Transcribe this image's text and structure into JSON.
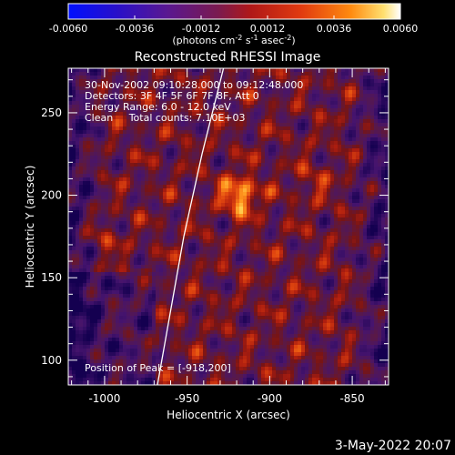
{
  "chart_data": {
    "type": "heatmap",
    "title": "Reconstructed RHESSI Image",
    "xlabel": "Heliocentric X (arcsec)",
    "ylabel": "Heliocentric Y (arcsec)",
    "xlim": [
      -1022,
      -828
    ],
    "ylim": [
      85,
      277
    ],
    "x_ticks": [
      -1000,
      -950,
      -900,
      -850
    ],
    "y_ticks": [
      100,
      150,
      200,
      250
    ],
    "colorbar": {
      "range": [
        -0.006,
        0.006
      ],
      "ticks": [
        "-0.0060",
        "-0.0036",
        "-0.0012",
        "0.0012",
        "0.0036",
        "0.0060"
      ],
      "units_label": "(photons cm",
      "units_exp1": "-2",
      "units_mid1": " s",
      "units_exp2": "-1",
      "units_mid2": " asec",
      "units_exp3": "-2",
      "units_end": ")",
      "colormap": "fire"
    },
    "peak": {
      "x": -918,
      "y": 200
    },
    "limb_curve": [
      [
        -968,
        85
      ],
      [
        -960,
        130
      ],
      [
        -952,
        175
      ],
      [
        -941,
        225
      ],
      [
        -928,
        277
      ]
    ],
    "annotations": [
      "30-Nov-2002 09:10:28.000 to 09:12:48.000",
      "Detectors: 3F 4F 5F 6F 7F 8F, Att 0",
      "Energy Range: 6.0 - 12.0 keV",
      "Clean     Total counts: 7.10E+03"
    ],
    "peak_label": "Position of Peak = [-918,200]",
    "timestamp": "3-May-2022 20:07"
  }
}
